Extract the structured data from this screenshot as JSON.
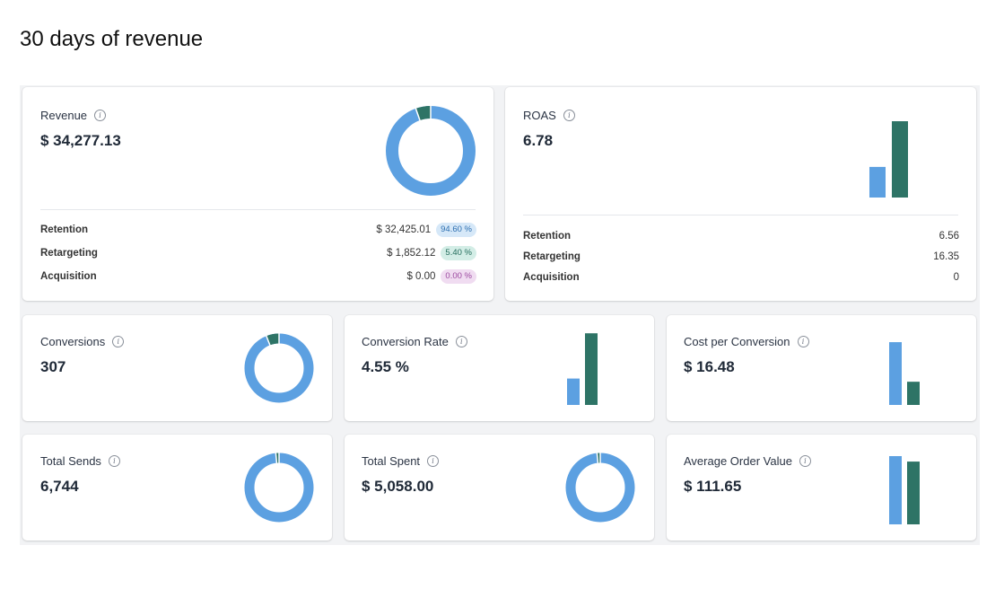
{
  "page": {
    "title": "30 days of revenue"
  },
  "colors": {
    "blue": "#5ca0e1",
    "green": "#2e7466"
  },
  "revenue": {
    "title": "Revenue",
    "value": "$ 34,277.13",
    "donut_fraction": 0.946,
    "rows": [
      {
        "label": "Retention",
        "amount": "$ 32,425.01",
        "pct": "94.60 %"
      },
      {
        "label": "Retargeting",
        "amount": "$ 1,852.12",
        "pct": "5.40 %"
      },
      {
        "label": "Acquisition",
        "amount": "$ 0.00",
        "pct": "0.00 %"
      }
    ]
  },
  "roas": {
    "title": "ROAS",
    "value": "6.78",
    "bars": [
      6.56,
      16.35
    ],
    "rows": [
      {
        "label": "Retention",
        "value": "6.56"
      },
      {
        "label": "Retargeting",
        "value": "16.35"
      },
      {
        "label": "Acquisition",
        "value": "0"
      }
    ]
  },
  "conversions": {
    "title": "Conversions",
    "value": "307",
    "donut_fraction": 0.94
  },
  "conversion_rate": {
    "title": "Conversion Rate",
    "value": "4.55 %",
    "bars": [
      0.35,
      0.95
    ]
  },
  "cost_per_conversion": {
    "title": "Cost per Conversion",
    "value": "$ 16.48",
    "bars": [
      0.92,
      0.34
    ]
  },
  "total_sends": {
    "title": "Total Sends",
    "value": "6,744",
    "donut_fraction": 0.985
  },
  "total_spent": {
    "title": "Total Spent",
    "value": "$ 5,058.00",
    "donut_fraction": 0.985
  },
  "average_order_value": {
    "title": "Average Order Value",
    "value": "$ 111.65",
    "bars": [
      1.0,
      0.92
    ]
  }
}
